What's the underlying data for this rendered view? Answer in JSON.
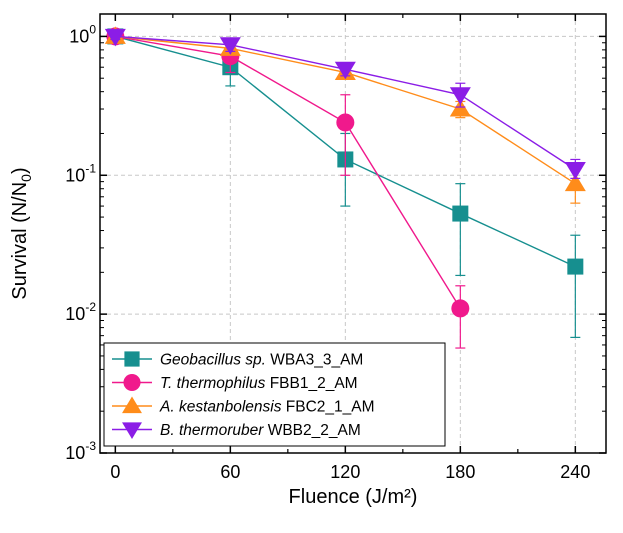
{
  "chart_data": {
    "type": "line",
    "title": "",
    "xlabel": "Fluence (J/m²)",
    "ylabel": "Survival (N/N0)",
    "ylabel_parts": {
      "main": "Survival (N/N",
      "sub": "0",
      "close": ")"
    },
    "x": [
      0,
      60,
      120,
      180,
      240
    ],
    "xlim": [
      -8,
      256
    ],
    "ylim": [
      0.001,
      1.45
    ],
    "yscale": "log",
    "xticks": [
      {
        "value": 0,
        "label": "0"
      },
      {
        "value": 60,
        "label": "60"
      },
      {
        "value": 120,
        "label": "120"
      },
      {
        "value": 180,
        "label": "180"
      },
      {
        "value": 240,
        "label": "240"
      }
    ],
    "yticks": [
      {
        "value": 1,
        "base": "10",
        "exp": "0"
      },
      {
        "value": 0.1,
        "base": "10",
        "exp": "-1"
      },
      {
        "value": 0.01,
        "base": "10",
        "exp": "-2"
      },
      {
        "value": 0.001,
        "base": "10",
        "exp": "-3"
      }
    ],
    "grid": true,
    "legend_position": "bottom-left",
    "series": [
      {
        "name": "Geobacillus sp. WBA3_3_AM",
        "name_italic": "Geobacillus sp.",
        "name_rest": " WBA3_3_AM",
        "color": "#168f8f",
        "marker": "square",
        "x": [
          0,
          60,
          120,
          180,
          240
        ],
        "values": [
          1.0,
          0.6,
          0.13,
          0.053,
          0.022
        ],
        "err_low": [
          0.9,
          0.44,
          0.06,
          0.019,
          0.0068
        ],
        "err_high": [
          1.1,
          0.76,
          0.2,
          0.087,
          0.037
        ]
      },
      {
        "name": "T. thermophilus FBB1_2_AM",
        "name_italic": "T. thermophilus",
        "name_rest": " FBB1_2_AM",
        "color": "#f0198c",
        "marker": "circle",
        "x": [
          0,
          60,
          120,
          180
        ],
        "values": [
          1.0,
          0.72,
          0.24,
          0.011
        ],
        "err_low": [
          0.92,
          0.55,
          0.1,
          0.0057
        ],
        "err_high": [
          1.08,
          0.9,
          0.38,
          0.016
        ]
      },
      {
        "name": "A. kestanbolensis FBC2_1_AM",
        "name_italic": "A. kestanbolensis",
        "name_rest": " FBC2_1_AM",
        "color": "#ff8c1a",
        "marker": "triangle-up",
        "x": [
          0,
          60,
          120,
          180,
          240
        ],
        "values": [
          1.0,
          0.82,
          0.55,
          0.3,
          0.087
        ],
        "err_low": [
          0.95,
          0.74,
          0.5,
          0.26,
          0.063
        ],
        "err_high": [
          1.05,
          0.9,
          0.6,
          0.34,
          0.11
        ]
      },
      {
        "name": "B. thermoruber WBB2_2_AM",
        "name_italic": "B. thermoruber",
        "name_rest": " WBB2_2_AM",
        "color": "#8b1de6",
        "marker": "triangle-down",
        "x": [
          0,
          60,
          120,
          180,
          240
        ],
        "values": [
          1.0,
          0.87,
          0.58,
          0.38,
          0.11
        ],
        "err_low": [
          0.95,
          0.78,
          0.52,
          0.31,
          0.095
        ],
        "err_high": [
          1.05,
          0.95,
          0.63,
          0.46,
          0.13
        ]
      }
    ]
  }
}
